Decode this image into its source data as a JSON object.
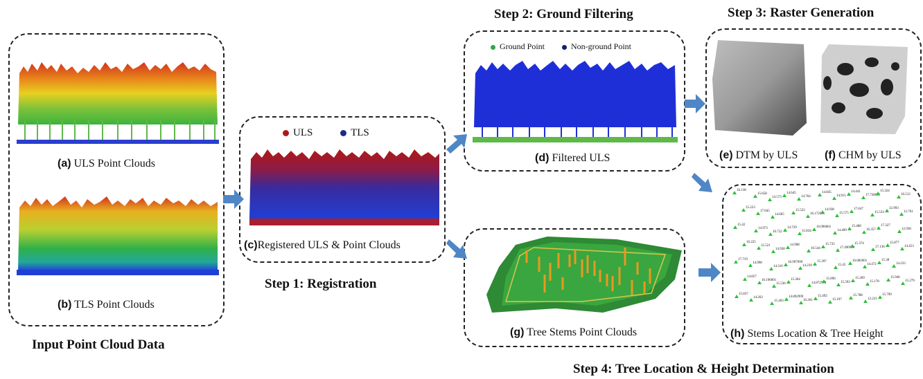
{
  "steps": {
    "input_title": "Input Point Cloud Data",
    "step1": "Step 1: Registration",
    "step2": "Step 2: Ground Filtering",
    "step3": "Step 3: Raster Generation",
    "step4": "Step 4: Tree Location & Height Determination"
  },
  "captions": {
    "a": {
      "letter": "(a)",
      "text": " ULS Point Clouds"
    },
    "b": {
      "letter": "(b)",
      "text": " TLS Point Clouds"
    },
    "c": {
      "letter": "(c)",
      "text": "Registered ULS & Point Clouds"
    },
    "d": {
      "letter": "(d)",
      "text": " Filtered ULS"
    },
    "e": {
      "letter": "(e)",
      "text": " DTM by ULS"
    },
    "f": {
      "letter": "(f)",
      "text": " CHM by ULS"
    },
    "g": {
      "letter": "(g)",
      "text": " Tree Stems Point Clouds"
    },
    "h": {
      "letter": "(h)",
      "text": " Stems Location & Tree Height"
    }
  },
  "legends": {
    "registration": [
      {
        "label": "ULS",
        "color": "#b01818"
      },
      {
        "label": "TLS",
        "color": "#1c2a8a"
      }
    ],
    "filtering": [
      {
        "label": "Ground Point",
        "color": "#2fa84a"
      },
      {
        "label": "Non-ground Point",
        "color": "#12206e"
      }
    ]
  },
  "colors": {
    "arrow": "#4f86c6",
    "uls_top": "#d2341c",
    "uls_mid": "#e8d020",
    "uls_low": "#3cb33c",
    "tls_blue": "#1f3fd6",
    "marker": "#2fbf3a"
  },
  "stem_labels": [
    "16.138",
    "15.658",
    "14.573",
    "14.645",
    "14.764",
    "14.845",
    "14.915",
    "14.441",
    "17.738001",
    "15.324",
    "16.512",
    "15.223",
    "17.045",
    "14.665",
    "15.522",
    "16.172001",
    "14.938",
    "15.575",
    "17.647",
    "15.533",
    "12.993",
    "12.761",
    "15.42",
    "14.973",
    "16.722",
    "14.729",
    "15.834",
    "16.096001",
    "14.409",
    "15.488",
    "16.357",
    "17.327",
    "12.938",
    "16.225",
    "15.521",
    "14.938",
    "14.908",
    "16.544",
    "15.735",
    "17.490999",
    "15.374",
    "17.136",
    "15.877",
    "14.453",
    "17.719",
    "14.998",
    "14.316",
    "16.997999",
    "14.239",
    "15.397",
    "15.43",
    "16.082001",
    "14.472",
    "15.38",
    "14.233",
    "14.857",
    "16.196001",
    "15.536",
    "15.364",
    "14.872999",
    "15.896",
    "15.593",
    "15.269",
    "15.178",
    "15.946",
    "15.279",
    "15.837",
    "14.263",
    "15.403",
    "14.892999",
    "16.201",
    "15.492",
    "15.197",
    "15.788",
    "12.221",
    "15.799"
  ]
}
